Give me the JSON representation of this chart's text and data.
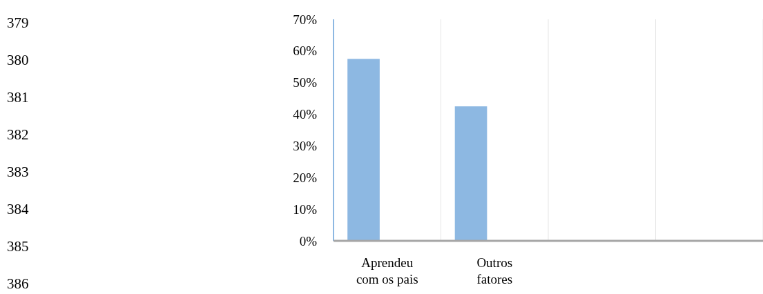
{
  "chart_data": {
    "type": "bar",
    "categories": [
      "Aprendeu com os pais",
      "Outros fatores",
      null,
      null
    ],
    "values": [
      57.5,
      42.5,
      null,
      null
    ],
    "color": "#8db8e2",
    "ylim": [
      0,
      70
    ],
    "yticks": [
      {
        "value": 0,
        "label": "0%"
      },
      {
        "value": 10,
        "label": "10%"
      },
      {
        "value": 20,
        "label": "20%"
      },
      {
        "value": 30,
        "label": "30%"
      },
      {
        "value": 40,
        "label": "40%"
      },
      {
        "value": 50,
        "label": "50%"
      },
      {
        "value": 60,
        "label": "60%"
      },
      {
        "value": 70,
        "label": "70%"
      }
    ],
    "grid": "x",
    "annotations": [
      "379",
      "380",
      "381",
      "382",
      "383",
      "384",
      "385",
      "386"
    ]
  }
}
